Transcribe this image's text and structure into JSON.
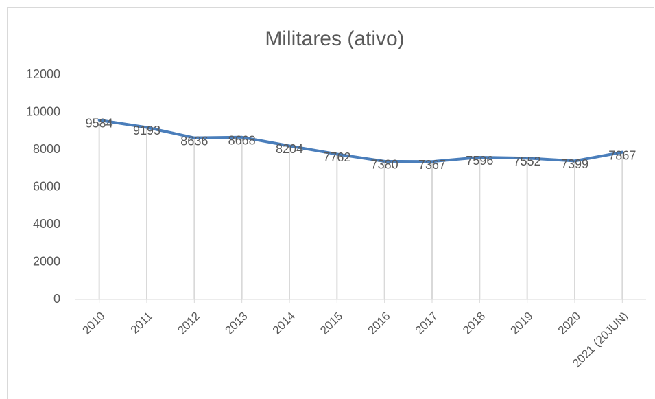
{
  "chart_data": {
    "type": "line",
    "title": "Militares (ativo)",
    "categories": [
      "2010",
      "2011",
      "2012",
      "2013",
      "2014",
      "2015",
      "2016",
      "2017",
      "2018",
      "2019",
      "2020",
      "2021 (20JUN)"
    ],
    "values": [
      9584,
      9193,
      8636,
      8668,
      8204,
      7762,
      7380,
      7367,
      7596,
      7552,
      7399,
      7867
    ],
    "color": "#4a7ebb",
    "drop_lines": true,
    "ylim": [
      0,
      12000
    ],
    "yticks": [
      0,
      2000,
      4000,
      6000,
      8000,
      10000,
      12000
    ]
  }
}
